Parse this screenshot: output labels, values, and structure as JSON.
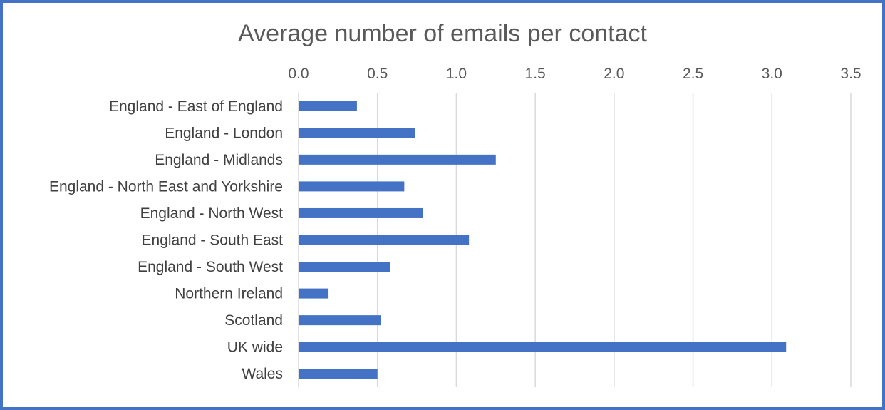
{
  "chart_data": {
    "type": "bar",
    "orientation": "horizontal",
    "title": "Average number of emails per contact",
    "xlabel": "",
    "ylabel": "",
    "xlim": [
      0,
      3.5
    ],
    "x_ticks": [
      "0.0",
      "0.5",
      "1.0",
      "1.5",
      "2.0",
      "2.5",
      "3.0",
      "3.5"
    ],
    "x_tick_values": [
      0,
      0.5,
      1.0,
      1.5,
      2.0,
      2.5,
      3.0,
      3.5
    ],
    "x_axis_position": "top",
    "grid": true,
    "bar_color": "#4472C4",
    "categories": [
      "England - East of England",
      "England - London",
      "England - Midlands",
      "England - North East and Yorkshire",
      "England - North West",
      "England - South East",
      "England - South West",
      "Northern Ireland",
      "Scotland",
      "UK wide",
      "Wales"
    ],
    "values": [
      0.37,
      0.74,
      1.25,
      0.67,
      0.79,
      1.08,
      0.58,
      0.19,
      0.52,
      3.09,
      0.5
    ]
  },
  "colors": {
    "border": "#4472C4",
    "bar": "#4472C4",
    "grid": "#d9d9d9",
    "text": "#595959"
  }
}
